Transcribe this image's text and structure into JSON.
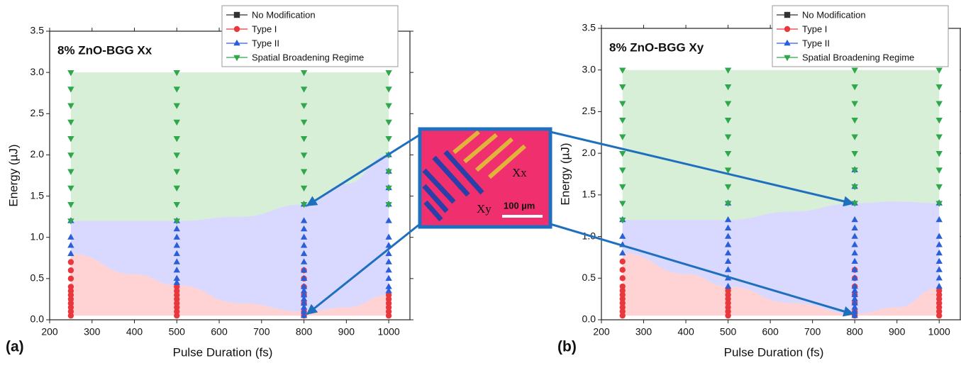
{
  "chart_data": [
    {
      "type": "scatter",
      "title": "8% ZnO-BGG Xx",
      "panel_label": "(a)",
      "x_label": "Pulse Duration (fs)",
      "y_label": "Energy (µJ)",
      "xlim": [
        200,
        1050
      ],
      "xticks": [
        200,
        300,
        400,
        500,
        600,
        700,
        800,
        900,
        1000
      ],
      "ylim": [
        0,
        3.5
      ],
      "yticks": [
        {
          "value": 0,
          "label": "0.0"
        },
        0.5,
        {
          "value": 1,
          "label": "1.0"
        },
        1.5,
        {
          "value": 2,
          "label": "2.0"
        },
        2.5,
        {
          "value": 3,
          "label": "3.0"
        },
        3.5
      ],
      "legend": "upper right",
      "boundaries": {
        "x": [
          250,
          400,
          500,
          650,
          800,
          900,
          1000
        ],
        "floor": 0.05,
        "ceiling": 3.0,
        "lower": [
          0.8,
          0.55,
          0.42,
          0.2,
          0.1,
          0.15,
          0.3
        ],
        "upper": [
          1.2,
          1.2,
          1.2,
          1.25,
          1.4,
          1.65,
          2.0
        ],
        "colors": [
          "rgba(255,140,140,0.38)",
          "rgba(140,140,255,0.33)",
          "rgba(140,205,140,0.35)"
        ]
      },
      "series": [
        {
          "name": "No Modification",
          "color": "#333333",
          "marker": "square",
          "x": [],
          "values": []
        },
        {
          "name": "Type I",
          "color": "#e8383d",
          "marker": "circle",
          "x": [
            250,
            250,
            250,
            250,
            250,
            250,
            250,
            250,
            250,
            250,
            250,
            500,
            500,
            500,
            500,
            500,
            500,
            500,
            500,
            800,
            800,
            800,
            800,
            800,
            800,
            800,
            1000,
            1000,
            1000,
            1000,
            1000,
            1000
          ],
          "values": [
            0.05,
            0.1,
            0.15,
            0.2,
            0.25,
            0.3,
            0.35,
            0.4,
            0.5,
            0.6,
            0.7,
            0.05,
            0.1,
            0.15,
            0.2,
            0.25,
            0.3,
            0.35,
            0.4,
            0.05,
            0.1,
            0.2,
            0.3,
            0.4,
            0.5,
            0.6,
            0.05,
            0.1,
            0.15,
            0.2,
            0.25,
            0.3
          ]
        },
        {
          "name": "Type II",
          "color": "#2a5fd8",
          "marker": "up",
          "x": [
            250,
            250,
            250,
            250,
            500,
            500,
            500,
            500,
            500,
            500,
            500,
            500,
            500,
            800,
            800,
            800,
            800,
            800,
            800,
            800,
            800,
            800,
            800,
            800,
            800,
            800,
            800,
            800,
            800,
            800,
            1000,
            1000,
            1000,
            1000,
            1000,
            1000,
            1000,
            1000,
            1000,
            1000,
            1000,
            1000,
            1000
          ],
          "values": [
            0.8,
            0.9,
            1.0,
            1.2,
            0.45,
            0.5,
            0.6,
            0.7,
            0.8,
            0.9,
            1.0,
            1.1,
            1.2,
            0.05,
            0.1,
            0.15,
            0.2,
            0.25,
            0.3,
            0.35,
            0.4,
            0.5,
            0.6,
            0.7,
            0.8,
            0.9,
            1.0,
            1.1,
            1.2,
            1.4,
            0.35,
            0.4,
            0.5,
            0.6,
            0.7,
            0.8,
            0.9,
            1.0,
            1.2,
            1.4,
            1.6,
            1.8,
            2.0
          ]
        },
        {
          "name": "Spatial Broadening Regime",
          "color": "#2ea84a",
          "marker": "down",
          "x": [
            250,
            250,
            250,
            250,
            250,
            250,
            250,
            250,
            250,
            250,
            500,
            500,
            500,
            500,
            500,
            500,
            500,
            500,
            500,
            500,
            800,
            800,
            800,
            800,
            800,
            800,
            800,
            800,
            800,
            1000,
            1000,
            1000,
            1000,
            1000,
            1000,
            1000,
            1000,
            1000
          ],
          "values": [
            1.2,
            1.4,
            1.6,
            1.8,
            2.0,
            2.2,
            2.4,
            2.6,
            2.8,
            3.0,
            1.2,
            1.4,
            1.6,
            1.8,
            2.0,
            2.2,
            2.4,
            2.6,
            2.8,
            3.0,
            1.4,
            1.6,
            1.8,
            2.0,
            2.2,
            2.4,
            2.6,
            2.8,
            3.0,
            1.4,
            1.6,
            1.8,
            2.0,
            2.2,
            2.4,
            2.6,
            2.8,
            3.0
          ]
        }
      ]
    },
    {
      "type": "scatter",
      "title": "8% ZnO-BGG Xy",
      "panel_label": "(b)",
      "x_label": "Pulse Duration (fs)",
      "y_label": "Energy (µJ)",
      "xlim": [
        200,
        1050
      ],
      "xticks": [
        200,
        300,
        400,
        500,
        600,
        700,
        800,
        900,
        1000
      ],
      "ylim": [
        0,
        3.5
      ],
      "yticks": [
        {
          "value": 0,
          "label": "0.0"
        },
        0.5,
        {
          "value": 1,
          "label": "1.0"
        },
        1.5,
        {
          "value": 2,
          "label": "2.0"
        },
        2.5,
        {
          "value": 3,
          "label": "3.0"
        },
        3.5
      ],
      "legend": "upper right",
      "boundaries": {
        "x": [
          250,
          400,
          500,
          650,
          800,
          900,
          1000
        ],
        "floor": 0.05,
        "ceiling": 3.0,
        "lower": [
          0.8,
          0.55,
          0.4,
          0.2,
          0.07,
          0.15,
          0.38
        ],
        "upper": [
          1.2,
          1.2,
          1.2,
          1.3,
          1.4,
          1.42,
          1.4
        ],
        "colors": [
          "rgba(255,140,140,0.38)",
          "rgba(140,140,255,0.33)",
          "rgba(140,205,140,0.35)"
        ]
      },
      "series": [
        {
          "name": "No Modification",
          "color": "#333333",
          "marker": "square",
          "x": [],
          "values": []
        },
        {
          "name": "Type I",
          "color": "#e8383d",
          "marker": "circle",
          "x": [
            250,
            250,
            250,
            250,
            250,
            250,
            250,
            250,
            250,
            250,
            250,
            500,
            500,
            500,
            500,
            500,
            500,
            500,
            800,
            800,
            800,
            800,
            800,
            800,
            800,
            1000,
            1000,
            1000,
            1000,
            1000,
            1000,
            1000
          ],
          "values": [
            0.05,
            0.1,
            0.15,
            0.2,
            0.25,
            0.3,
            0.35,
            0.4,
            0.5,
            0.6,
            0.7,
            0.05,
            0.1,
            0.15,
            0.2,
            0.25,
            0.3,
            0.35,
            0.05,
            0.1,
            0.2,
            0.3,
            0.4,
            0.5,
            0.6,
            0.05,
            0.1,
            0.15,
            0.2,
            0.25,
            0.3,
            0.35
          ]
        },
        {
          "name": "Type II",
          "color": "#2a5fd8",
          "marker": "up",
          "x": [
            250,
            250,
            250,
            250,
            500,
            500,
            500,
            500,
            500,
            500,
            500,
            500,
            500,
            500,
            800,
            800,
            800,
            800,
            800,
            800,
            800,
            800,
            800,
            800,
            800,
            800,
            800,
            800,
            800,
            800,
            800,
            800,
            800,
            1000,
            1000,
            1000,
            1000,
            1000,
            1000,
            1000,
            1000,
            1000
          ],
          "values": [
            0.8,
            0.9,
            1.0,
            1.2,
            0.4,
            0.5,
            0.6,
            0.7,
            0.8,
            0.9,
            1.0,
            1.1,
            1.2,
            1.4,
            0.05,
            0.1,
            0.15,
            0.2,
            0.25,
            0.3,
            0.35,
            0.4,
            0.5,
            0.6,
            0.7,
            0.8,
            0.9,
            1.0,
            1.1,
            1.2,
            1.4,
            1.6,
            1.8,
            0.4,
            0.5,
            0.6,
            0.7,
            0.8,
            0.9,
            1.0,
            1.2,
            1.4
          ]
        },
        {
          "name": "Spatial Broadening Regime",
          "color": "#2ea84a",
          "marker": "down",
          "x": [
            250,
            250,
            250,
            250,
            250,
            250,
            250,
            250,
            250,
            250,
            500,
            500,
            500,
            500,
            500,
            500,
            500,
            500,
            500,
            800,
            800,
            800,
            800,
            800,
            800,
            800,
            800,
            800,
            1000,
            1000,
            1000,
            1000,
            1000,
            1000,
            1000,
            1000,
            1000
          ],
          "values": [
            1.2,
            1.4,
            1.6,
            1.8,
            2.0,
            2.2,
            2.4,
            2.6,
            2.8,
            3.0,
            1.4,
            1.6,
            1.8,
            2.0,
            2.2,
            2.4,
            2.6,
            2.8,
            3.0,
            1.4,
            1.6,
            1.8,
            2.0,
            2.2,
            2.4,
            2.6,
            2.8,
            3.0,
            1.4,
            1.6,
            1.8,
            2.0,
            2.2,
            2.4,
            2.6,
            2.8,
            3.0
          ]
        }
      ]
    }
  ],
  "inset": {
    "labels": [
      "Xx",
      "Xy",
      "100 µm"
    ]
  }
}
